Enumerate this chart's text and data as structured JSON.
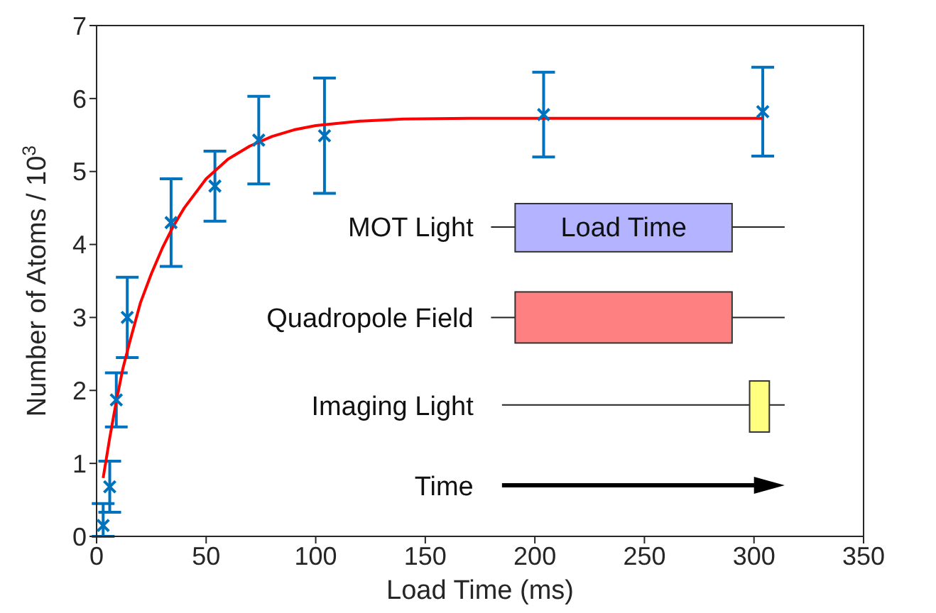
{
  "chart_data": {
    "type": "scatter",
    "xlabel": "Load Time (ms)",
    "ylabel": "Number of Atoms / 10$^{3}$",
    "xlim": [
      0,
      350
    ],
    "xticks": [
      0,
      50,
      100,
      150,
      200,
      250,
      300,
      350
    ],
    "ylim": [
      0,
      7
    ],
    "yticks": [
      0,
      1,
      2,
      3,
      4,
      5,
      6,
      7
    ],
    "series": [
      {
        "marker": "cross",
        "color": "#0072bd",
        "x": [
          3,
          6,
          9,
          14,
          34,
          54,
          74,
          104,
          204,
          304
        ],
        "values": [
          0.15,
          0.68,
          1.87,
          3.0,
          4.3,
          4.8,
          5.43,
          5.49,
          5.78,
          5.82
        ],
        "errors": [
          [
            0,
            0.45
          ],
          0.35,
          0.37,
          0.55,
          0.6,
          0.48,
          0.6,
          0.79,
          0.58,
          0.61
        ]
      },
      {
        "type": "line",
        "color": "#ff0000",
        "x": [
          3,
          6,
          9,
          12,
          15,
          20,
          25,
          30,
          35,
          40,
          50,
          60,
          70,
          80,
          90,
          100,
          120,
          140,
          170,
          200,
          250,
          304
        ],
        "values": [
          0.8,
          1.35,
          1.85,
          2.3,
          2.65,
          3.2,
          3.6,
          3.95,
          4.25,
          4.5,
          4.9,
          5.17,
          5.35,
          5.48,
          5.57,
          5.63,
          5.69,
          5.72,
          5.73,
          5.73,
          5.73,
          5.73
        ]
      }
    ],
    "annotations": [
      "MOT Light",
      "Load Time",
      "Quadropole Field",
      "Imaging Light",
      "Time"
    ]
  }
}
